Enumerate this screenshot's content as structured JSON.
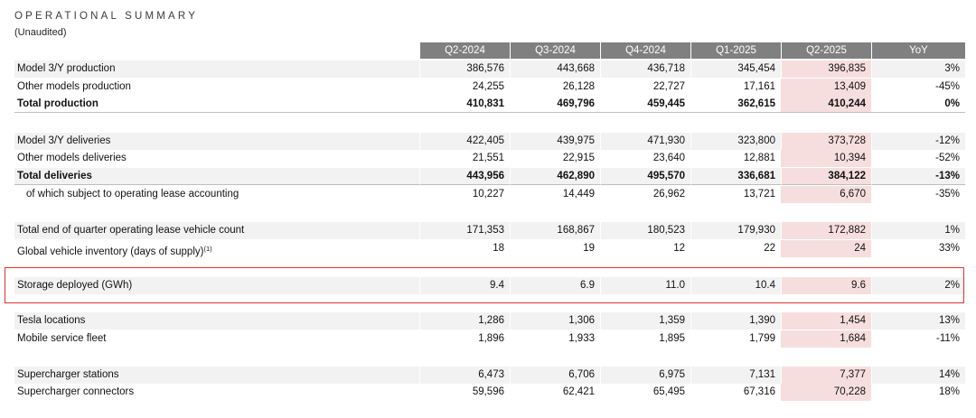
{
  "header": {
    "title": "OPERATIONAL SUMMARY",
    "subtitle": "(Unaudited)"
  },
  "columns": [
    "Q2-2024",
    "Q3-2024",
    "Q4-2024",
    "Q1-2025",
    "Q2-2025",
    "YoY"
  ],
  "rows": [
    {
      "label": "Model 3/Y production",
      "values": [
        "386,576",
        "443,668",
        "436,718",
        "345,454",
        "396,835",
        "3%"
      ]
    },
    {
      "label": "Other models production",
      "values": [
        "24,255",
        "26,128",
        "22,727",
        "17,161",
        "13,409",
        "-45%"
      ]
    },
    {
      "label": "Total production",
      "values": [
        "410,831",
        "469,796",
        "459,445",
        "362,615",
        "410,244",
        "0%"
      ]
    },
    {
      "label": "Model 3/Y deliveries",
      "values": [
        "422,405",
        "439,975",
        "471,930",
        "323,800",
        "373,728",
        "-12%"
      ]
    },
    {
      "label": "Other models deliveries",
      "values": [
        "21,551",
        "22,915",
        "23,640",
        "12,881",
        "10,394",
        "-52%"
      ]
    },
    {
      "label": "Total deliveries",
      "values": [
        "443,956",
        "462,890",
        "495,570",
        "336,681",
        "384,122",
        "-13%"
      ]
    },
    {
      "label": "of which subject to operating lease accounting",
      "values": [
        "10,227",
        "14,449",
        "26,962",
        "13,721",
        "6,670",
        "-35%"
      ]
    },
    {
      "label": "Total end of quarter operating lease vehicle count",
      "values": [
        "171,353",
        "168,867",
        "180,523",
        "179,930",
        "172,882",
        "1%"
      ]
    },
    {
      "label": "Global vehicle inventory (days of supply)",
      "footnote": "(1)",
      "values": [
        "18",
        "19",
        "12",
        "22",
        "24",
        "33%"
      ]
    },
    {
      "label": "Storage deployed (GWh)",
      "values": [
        "9.4",
        "6.9",
        "11.0",
        "10.4",
        "9.6",
        "2%"
      ]
    },
    {
      "label": "Tesla locations",
      "values": [
        "1,286",
        "1,306",
        "1,359",
        "1,390",
        "1,454",
        "13%"
      ]
    },
    {
      "label": "Mobile service fleet",
      "values": [
        "1,896",
        "1,933",
        "1,895",
        "1,799",
        "1,684",
        "-11%"
      ]
    },
    {
      "label": "Supercharger stations",
      "values": [
        "6,473",
        "6,706",
        "6,975",
        "7,131",
        "7,377",
        "14%"
      ]
    },
    {
      "label": "Supercharger connectors",
      "values": [
        "59,596",
        "62,421",
        "65,495",
        "67,316",
        "70,228",
        "18%"
      ]
    }
  ],
  "colors": {
    "header_bg": "#808080",
    "row_shade": "#f2f2f2",
    "current_quarter_highlight": "#f7dede",
    "annotation_box": "#e0352b"
  }
}
